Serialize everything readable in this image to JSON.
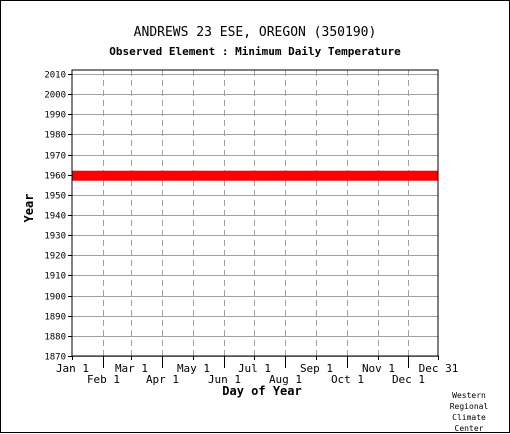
{
  "header": {
    "title": "ANDREWS 23 ESE, OREGON   (350190)",
    "subtitle": "Observed Element : Minimum Daily Temperature"
  },
  "credit": [
    "Western",
    "Regional",
    "Climate",
    "Center"
  ],
  "chart_data": {
    "type": "scatter",
    "xlabel": "Day of Year",
    "ylabel": "Year",
    "xlim": [
      1,
      365
    ],
    "ylim": [
      1870,
      2012
    ],
    "y_ticks": [
      1870,
      1880,
      1890,
      1900,
      1910,
      1920,
      1930,
      1940,
      1950,
      1960,
      1970,
      1980,
      1990,
      2000,
      2010
    ],
    "x_ticks": [
      {
        "label": "Jan 1",
        "day": 1,
        "row": 1
      },
      {
        "label": "Feb 1",
        "day": 32,
        "row": 2
      },
      {
        "label": "Mar 1",
        "day": 60,
        "row": 1
      },
      {
        "label": "Apr 1",
        "day": 91,
        "row": 2
      },
      {
        "label": "May 1",
        "day": 121,
        "row": 1
      },
      {
        "label": "Jun 1",
        "day": 152,
        "row": 2
      },
      {
        "label": "Jul 1",
        "day": 182,
        "row": 1
      },
      {
        "label": "Aug 1",
        "day": 213,
        "row": 2
      },
      {
        "label": "Sep 1",
        "day": 244,
        "row": 1
      },
      {
        "label": "Oct 1",
        "day": 274,
        "row": 2
      },
      {
        "label": "Nov 1",
        "day": 305,
        "row": 1
      },
      {
        "label": "Dec 1",
        "day": 335,
        "row": 2
      },
      {
        "label": "Dec 31",
        "day": 365,
        "row": 1
      }
    ],
    "grid": true,
    "series": [
      {
        "color": "#ff0000",
        "bands": [
          {
            "x0": 1,
            "x1": 365,
            "y0": 1960,
            "y1": 1962
          }
        ]
      }
    ]
  }
}
